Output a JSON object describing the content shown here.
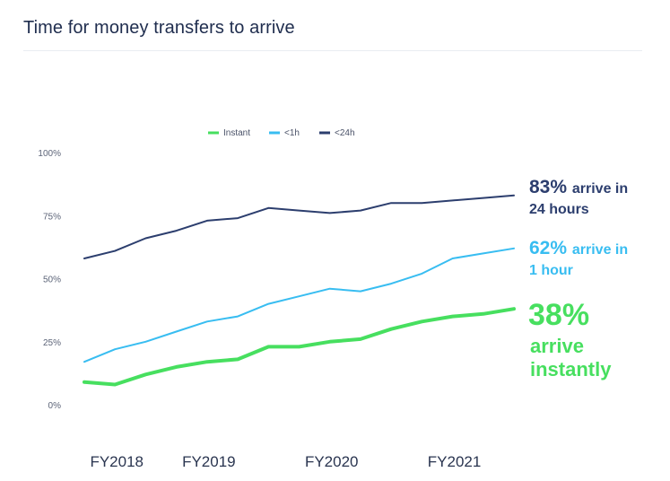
{
  "header": {
    "title": "Time for money transfers to arrive"
  },
  "colors": {
    "instant": "#47df5f",
    "within_1h": "#38bdf1",
    "within_24h": "#2c3e6e"
  },
  "chart_data": {
    "type": "line",
    "title": "Time for money transfers to arrive",
    "xlabel": "",
    "ylabel": "",
    "x": [
      0,
      1,
      2,
      3,
      4,
      5,
      6,
      7,
      8,
      9,
      10,
      11,
      12,
      13,
      14
    ],
    "x_tick_labels": [
      {
        "x": 1,
        "label": "FY2018"
      },
      {
        "x": 4,
        "label": "FY2019"
      },
      {
        "x": 8,
        "label": "FY2020"
      },
      {
        "x": 12,
        "label": "FY2021"
      }
    ],
    "y_ticks": [
      "0%",
      "25%",
      "50%",
      "75%",
      "100%"
    ],
    "ylim": [
      0,
      100
    ],
    "legend_position": "top",
    "grid": false,
    "series": [
      {
        "name": "Instant",
        "color": "#47df5f",
        "values": [
          9,
          8,
          12,
          15,
          17,
          18,
          23,
          23,
          25,
          26,
          30,
          33,
          35,
          36,
          38
        ]
      },
      {
        "name": "<1h",
        "color": "#38bdf1",
        "values": [
          17,
          22,
          25,
          29,
          33,
          35,
          40,
          43,
          46,
          45,
          48,
          52,
          58,
          60,
          62
        ]
      },
      {
        "name": "<24h",
        "color": "#2c3e6e",
        "values": [
          58,
          61,
          66,
          69,
          73,
          74,
          78,
          77,
          76,
          77,
          80,
          80,
          81,
          82,
          83
        ]
      }
    ],
    "annotations": [
      {
        "series": "<24h",
        "percent": "83%",
        "text_line1": "arrive in",
        "text_line2": "24 hours"
      },
      {
        "series": "<1h",
        "percent": "62%",
        "text_line1": "arrive in",
        "text_line2": "1 hour"
      },
      {
        "series": "Instant",
        "percent": "38%",
        "text_line1": "arrive",
        "text_line2": "instantly"
      }
    ]
  }
}
